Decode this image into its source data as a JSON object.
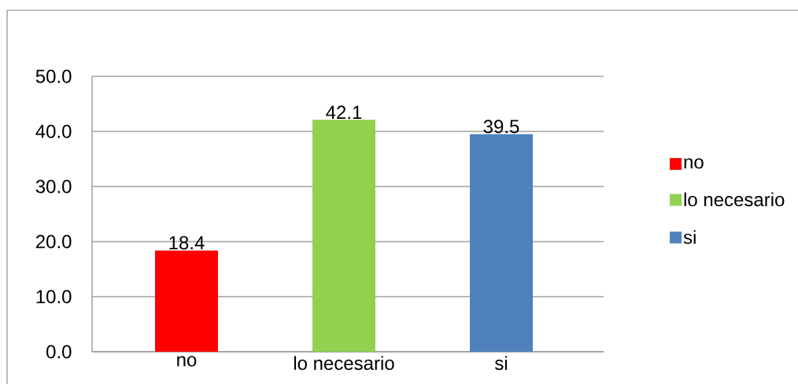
{
  "chart_data": {
    "type": "bar",
    "categories": [
      "no",
      "lo necesario",
      "si"
    ],
    "series": [
      {
        "name": "no",
        "color": "#ff0000",
        "values": [
          18.4,
          null,
          null
        ]
      },
      {
        "name": "lo necesario",
        "color": "#92d050",
        "values": [
          null,
          42.1,
          null
        ]
      },
      {
        "name": "si",
        "color": "#4f81bd",
        "values": [
          null,
          null,
          39.5
        ]
      }
    ],
    "ylim": [
      0,
      50
    ],
    "yticks": [
      {
        "value": 0,
        "label": "0.0"
      },
      {
        "value": 10,
        "label": "10.0"
      },
      {
        "value": 20,
        "label": "20.0"
      },
      {
        "value": 30,
        "label": "30.0"
      },
      {
        "value": 40,
        "label": "40.0"
      },
      {
        "value": 50,
        "label": "50.0"
      }
    ],
    "grid": "y",
    "legend": "right",
    "data_labels": true
  }
}
